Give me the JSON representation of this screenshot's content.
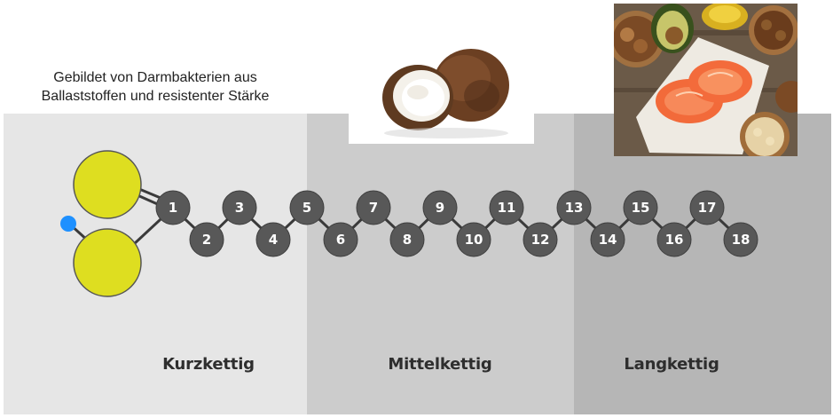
{
  "caption": {
    "line1": "Gebildet von Darmbakterien aus",
    "line2": "Ballaststoffen und resistenter Stärke"
  },
  "categories": {
    "short": "Kurzkettig",
    "medium": "Mittelkettig",
    "long": "Langkettig"
  },
  "chain": {
    "carbon_labels": [
      "1",
      "2",
      "3",
      "4",
      "5",
      "6",
      "7",
      "8",
      "9",
      "10",
      "11",
      "12",
      "13",
      "14",
      "15",
      "16",
      "17",
      "18"
    ]
  },
  "colors": {
    "panel_short": "#e6e6e6",
    "panel_medium": "#cccccc",
    "panel_long": "#b6b6b6",
    "node_fill": "#585858",
    "oxygen_fill": "#dede20",
    "hydrogen_fill": "#1e90ff",
    "bond": "#3a3a3a"
  },
  "images": {
    "coconut": "coconut-photo",
    "foods": "salmon-avocado-nuts-photo"
  }
}
